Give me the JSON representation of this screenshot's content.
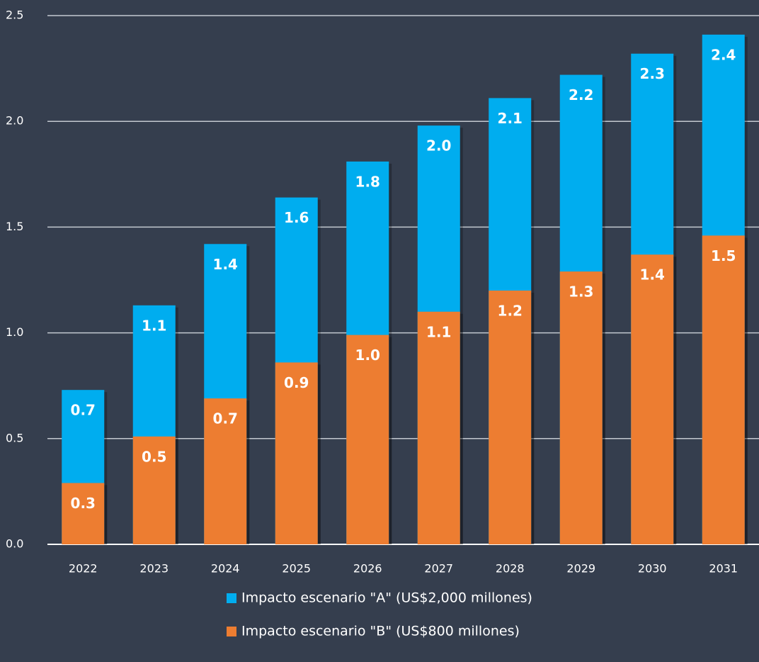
{
  "chart_data": {
    "type": "bar",
    "overlap": true,
    "categories": [
      "2022",
      "2023",
      "2024",
      "2025",
      "2026",
      "2027",
      "2028",
      "2029",
      "2030",
      "2031"
    ],
    "series": [
      {
        "name": "Impacto escenario \"A\" (US$2,000 millones)",
        "color": "#00adef",
        "values": [
          0.73,
          1.13,
          1.42,
          1.64,
          1.81,
          1.98,
          2.11,
          2.22,
          2.32,
          2.41
        ],
        "value_labels": [
          "0.7",
          "1.1",
          "1.4",
          "1.6",
          "1.8",
          "2.0",
          "2.1",
          "2.2",
          "2.3",
          "2.4"
        ]
      },
      {
        "name": "Impacto escenario \"B\" (US$800 millones)",
        "color": "#ed7d31",
        "values": [
          0.29,
          0.51,
          0.69,
          0.86,
          0.99,
          1.1,
          1.2,
          1.29,
          1.37,
          1.46
        ],
        "value_labels": [
          "0.3",
          "0.5",
          "0.7",
          "0.9",
          "1.0",
          "1.1",
          "1.2",
          "1.3",
          "1.4",
          "1.5"
        ]
      }
    ],
    "ylim": [
      0,
      2.5
    ],
    "yticks": [
      {
        "value": 0,
        "label": "0.0"
      },
      0.5,
      {
        "value": 1,
        "label": "1.0"
      },
      1.5,
      {
        "value": 2,
        "label": "2.0"
      },
      2.5
    ],
    "grid": true
  }
}
